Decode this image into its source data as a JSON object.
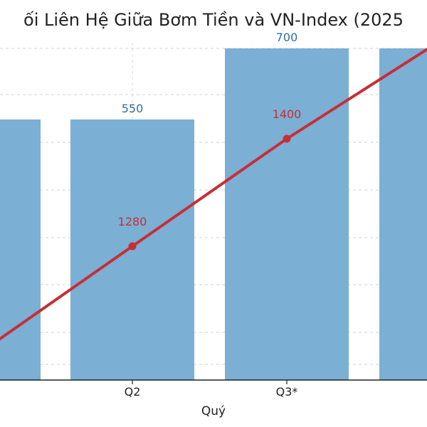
{
  "chart_data": {
    "type": "bar",
    "title": "ối Liên Hệ Giữa Bơm Tiền và VN-Index (2025",
    "xlabel": "Quý",
    "categories": [
      "",
      "Q2",
      "Q3*",
      ""
    ],
    "series": [
      {
        "type": "bar",
        "values": [
          550,
          550,
          700,
          700
        ],
        "labels": [
          "",
          "550",
          "700",
          ""
        ],
        "color": "#7bafd4",
        "label_color": "#2f6f9f"
      },
      {
        "type": "line",
        "values": [
          1160,
          1280,
          1400,
          1510
        ],
        "labels": [
          "",
          "1280",
          "1400",
          ""
        ],
        "color": "#c62f37",
        "label_color": "#c62f37"
      }
    ],
    "grid": true,
    "grid_axis": "y"
  }
}
